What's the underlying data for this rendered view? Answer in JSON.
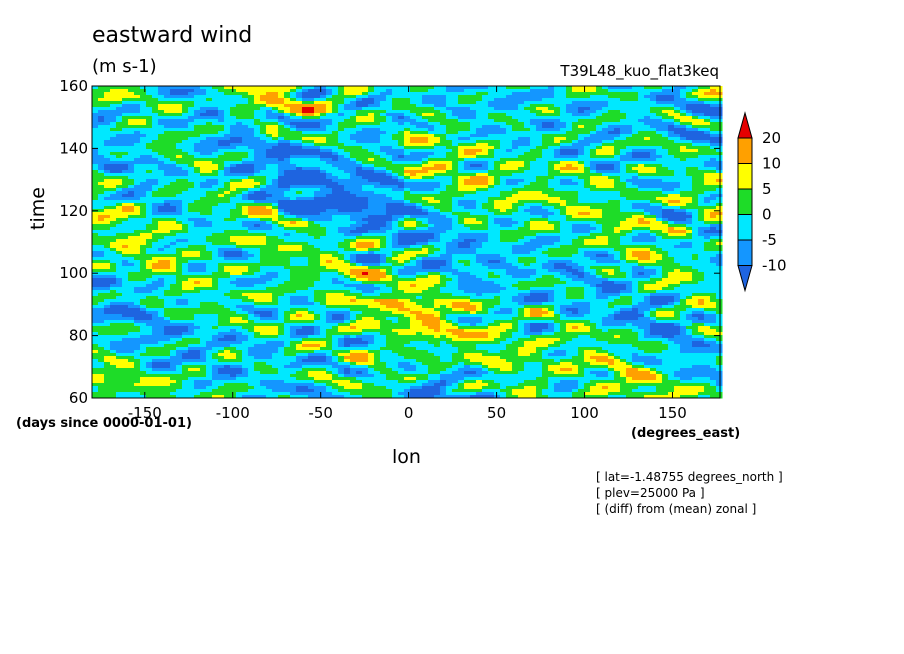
{
  "title": "eastward wind",
  "units": "(m s-1)",
  "run_label": "T39L48_kuo_flat3keq",
  "notes": [
    "[ lat=-1.48755 degrees_north ]",
    "[ plev=25000 Pa ]",
    "[ (diff) from (mean) zonal ]"
  ],
  "colors": {
    "-15": "#1e64e0",
    "-10": "#1496ff",
    "-5": "#00e8ff",
    "0": "#1edc28",
    "5": "#ffff00",
    "10": "#ffa000",
    "20": "#e60000"
  },
  "chart_data": {
    "type": "heatmap",
    "xlabel": "lon",
    "ylabel": "time",
    "x_units": "(degrees_east)",
    "y_units": "(days since 0000-01-01)",
    "xlim": [
      -180,
      177
    ],
    "ylim": [
      60,
      160
    ],
    "x_ticks": [
      -150,
      -100,
      -50,
      0,
      50,
      100,
      150
    ],
    "y_ticks": [
      60,
      80,
      100,
      120,
      140,
      160
    ],
    "colorbar": {
      "levels": [
        -10,
        -5,
        0,
        5,
        10,
        20
      ],
      "labels": [
        "-10",
        "-5",
        "0",
        "5",
        "10",
        "20"
      ]
    }
  }
}
